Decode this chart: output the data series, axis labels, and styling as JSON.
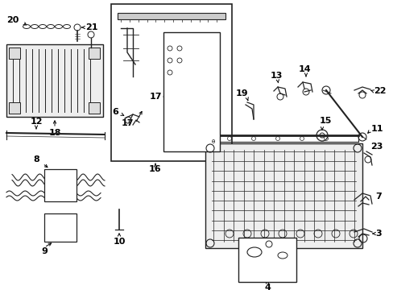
{
  "bg_color": "#ffffff",
  "lc": "#222222",
  "fig_w": 4.89,
  "fig_h": 3.6,
  "dpi": 100
}
